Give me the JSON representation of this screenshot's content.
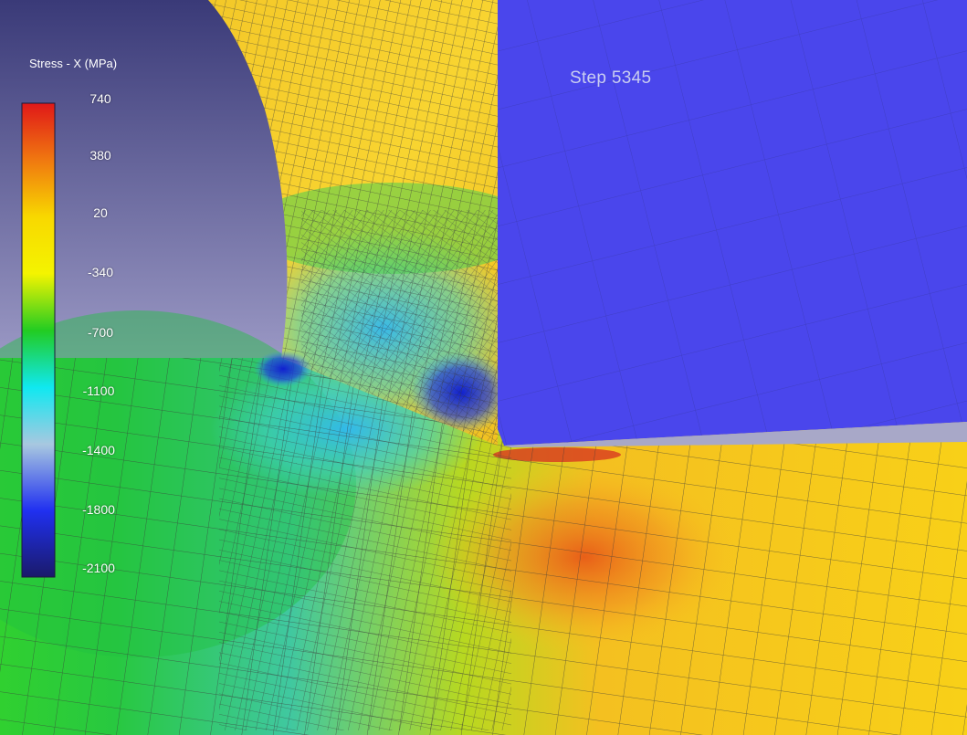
{
  "legend": {
    "title": "Stress - X (MPa)",
    "ticks": [
      "740",
      "380",
      "20",
      "-340",
      "-700",
      "-1100",
      "-1400",
      "-1800",
      "-2100"
    ],
    "colors": [
      "#e01818",
      "#f07810",
      "#f8d800",
      "#f4f400",
      "#22cc22",
      "#10e8f0",
      "#a8c8e0",
      "#2030f0",
      "#1a1a6a"
    ]
  },
  "overlay": {
    "step_label": "Step 5345"
  },
  "palette": {
    "tool_blue": "#4a46ec",
    "background_top": "#3a3a78",
    "background_bottom": "#9a98c4",
    "mesh_line": "#3a3a3a"
  }
}
